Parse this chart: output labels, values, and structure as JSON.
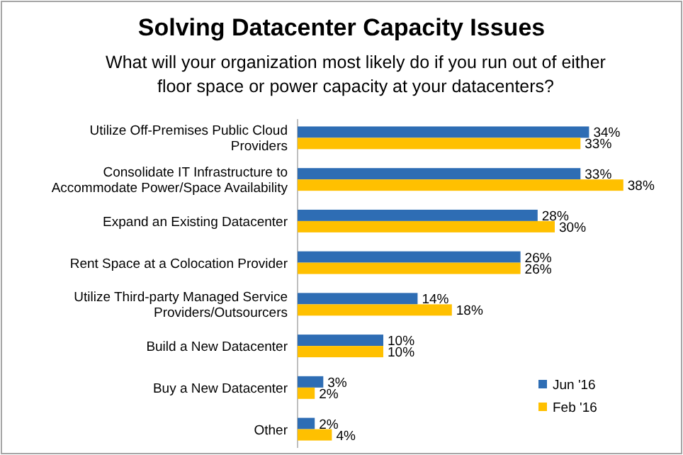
{
  "chart_data": {
    "type": "bar",
    "orientation": "horizontal",
    "title": "Solving Datacenter Capacity Issues",
    "subtitle": "What will your organization most likely do if you run out of either floor space or power capacity at your datacenters?",
    "categories": [
      "Utilize Off-Premises Public Cloud Providers",
      "Consolidate IT Infrastructure to Accommodate Power/Space Availability",
      "Expand an Existing Datacenter",
      "Rent Space at a Colocation Provider",
      "Utilize Third-party Managed Service Providers/Outsourcers",
      "Build a New Datacenter",
      "Buy a New Datacenter",
      "Other"
    ],
    "series": [
      {
        "name": "Jun '16",
        "color": "#2e6db4",
        "values": [
          34,
          33,
          28,
          26,
          14,
          10,
          3,
          2
        ],
        "value_labels": [
          "34%",
          "33%",
          "28%",
          "26%",
          "14%",
          "10%",
          "3%",
          "2%"
        ]
      },
      {
        "name": "Feb '16",
        "color": "#ffc000",
        "values": [
          33,
          38,
          30,
          26,
          18,
          10,
          2,
          4
        ],
        "value_labels": [
          "33%",
          "38%",
          "30%",
          "26%",
          "18%",
          "10%",
          "2%",
          "4%"
        ]
      }
    ],
    "legend": "bottom right"
  }
}
